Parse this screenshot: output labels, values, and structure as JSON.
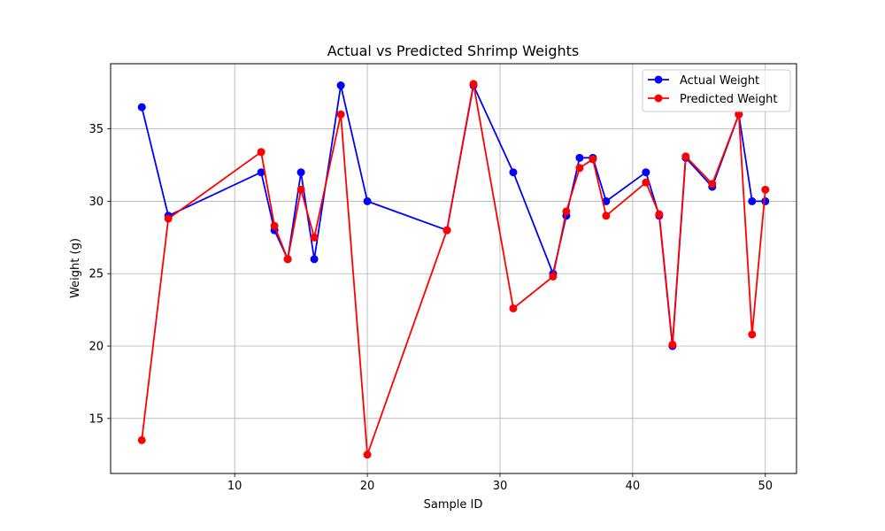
{
  "chart_data": {
    "type": "line",
    "title": "Actual vs Predicted Shrimp Weights",
    "xlabel": "Sample ID",
    "ylabel": "Weight (g)",
    "xlim": [
      0.65,
      52.35
    ],
    "ylim": [
      11.2,
      39.5
    ],
    "xticks": [
      10,
      20,
      30,
      40,
      50
    ],
    "yticks": [
      15,
      20,
      25,
      30,
      35
    ],
    "grid": true,
    "legend_position": "top-right",
    "x": [
      3,
      5,
      12,
      13,
      14,
      15,
      16,
      18,
      20,
      26,
      28,
      31,
      34,
      35,
      36,
      37,
      38,
      41,
      42,
      43,
      44,
      46,
      48,
      49,
      50
    ],
    "series": [
      {
        "name": "Actual Weight",
        "color": "#0000ff",
        "values": [
          36.5,
          29.0,
          32.0,
          28.0,
          26.0,
          32.0,
          26.0,
          38.0,
          30.0,
          28.0,
          38.0,
          32.0,
          25.0,
          29.0,
          33.0,
          33.0,
          30.0,
          32.0,
          29.0,
          20.0,
          33.0,
          31.0,
          36.0,
          30.0,
          30.0
        ]
      },
      {
        "name": "Predicted Weight",
        "color": "#ff0000",
        "values": [
          13.5,
          28.8,
          33.4,
          28.3,
          26.0,
          30.8,
          27.5,
          36.0,
          12.5,
          28.0,
          38.1,
          22.6,
          24.8,
          29.3,
          32.3,
          32.9,
          29.0,
          31.3,
          29.1,
          20.1,
          33.1,
          31.2,
          36.0,
          20.8,
          30.8
        ]
      }
    ]
  }
}
